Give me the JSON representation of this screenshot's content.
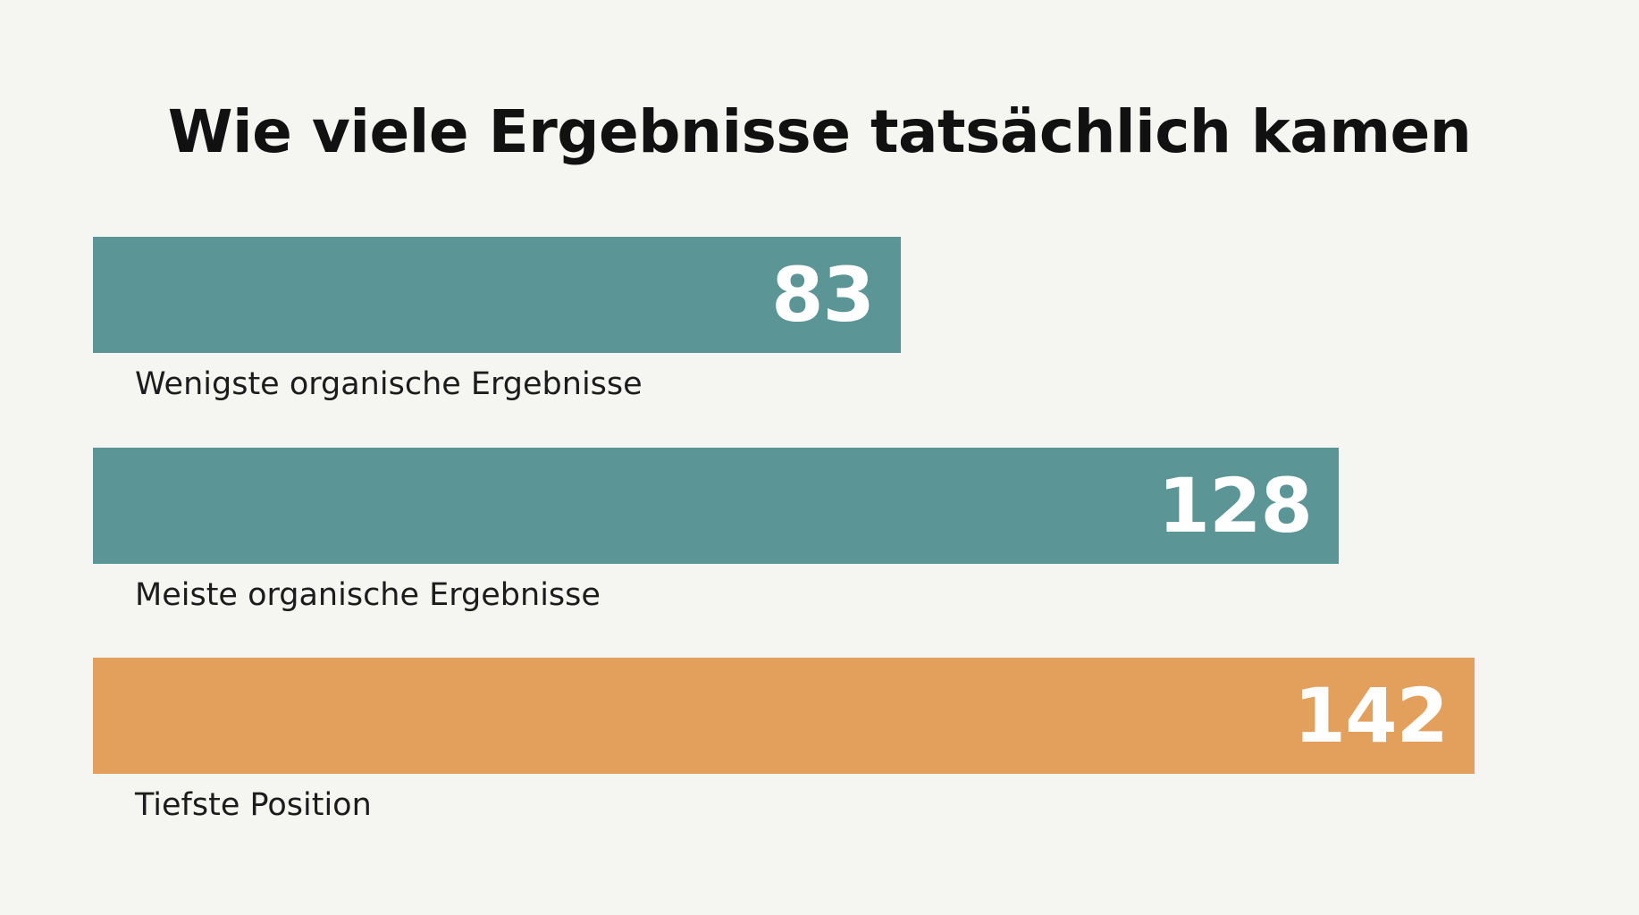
{
  "chart_data": {
    "type": "bar",
    "orientation": "horizontal",
    "title": "Wie viele Ergebnisse tatsächlich kamen",
    "xlabel": "",
    "ylabel": "",
    "grid": false,
    "legend": "none",
    "xlim": [
      0,
      142
    ],
    "categories": [
      "Wenigste organische Ergebnisse",
      "Meiste organische Ergebnisse",
      "Tiefste Position"
    ],
    "values": [
      83,
      128,
      142
    ],
    "value_labels": [
      "83",
      "128",
      "142"
    ],
    "colors": [
      "#5c9596",
      "#5c9596",
      "#e39f5c"
    ]
  }
}
